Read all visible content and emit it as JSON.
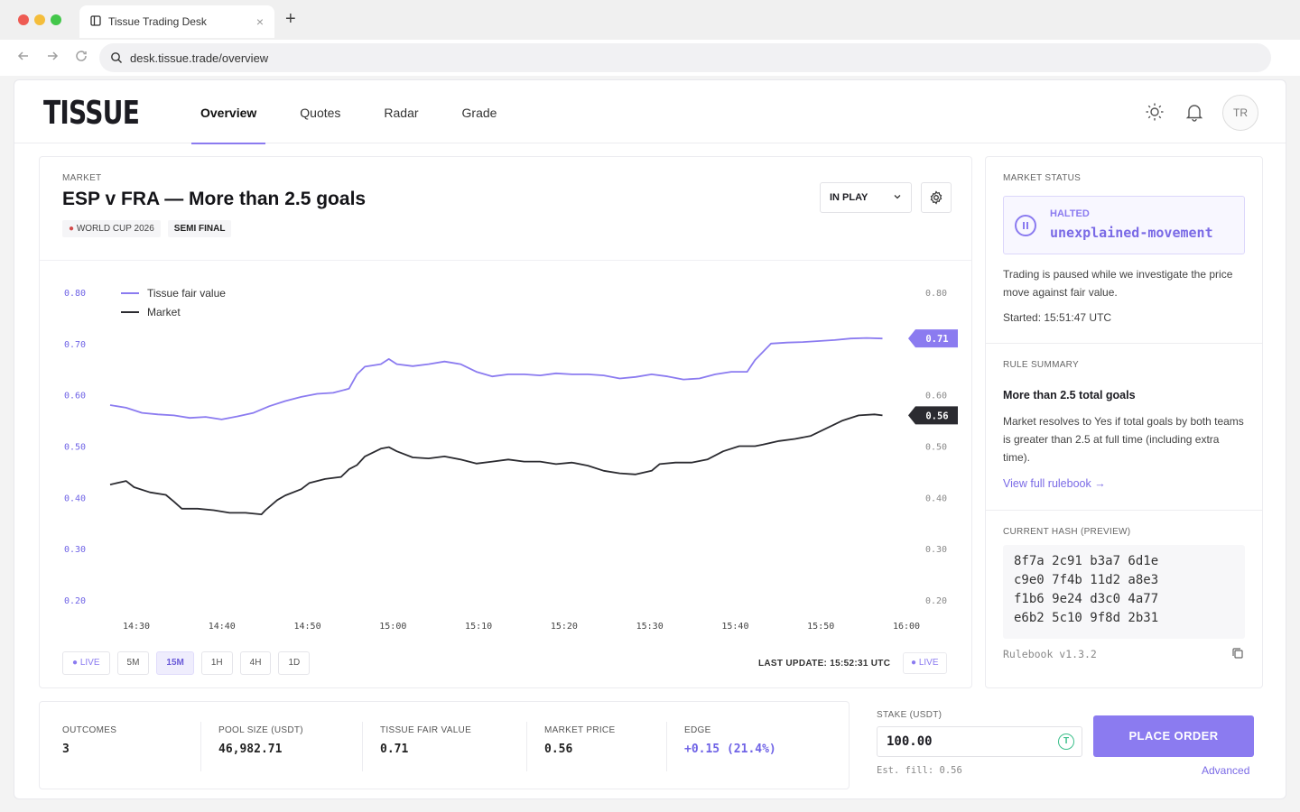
{
  "browser": {
    "tab_title": "Tissue Trading Desk",
    "tab_close": "×",
    "new_tab": "+",
    "url": "desk.tissue.trade/overview"
  },
  "header": {
    "logo": "TISSUE",
    "nav": [
      "Overview",
      "Quotes",
      "Radar",
      "Grade"
    ],
    "active_nav": "Overview",
    "avatar": "TR"
  },
  "market": {
    "section_label": "MARKET",
    "title": "ESP v FRA — More than 2.5 goals",
    "tag1": "WORLD CUP 2026",
    "tag2": "SEMI FINAL",
    "state_select": "IN PLAY",
    "timeframes": [
      "5M",
      "15M",
      "1H",
      "4H",
      "1D"
    ],
    "active_timeframe": "15M",
    "live_label": "LIVE",
    "last_update": "LAST UPDATE: 15:52:31 UTC"
  },
  "chart_data": {
    "type": "line",
    "xlabel": "",
    "ylabel": "",
    "ylim": [
      0.2,
      0.8
    ],
    "yticks": [
      "0.80",
      "0.70",
      "0.60",
      "0.50",
      "0.40",
      "0.30",
      "0.20"
    ],
    "xticks": [
      "14:30",
      "14:40",
      "14:50",
      "15:00",
      "15:10",
      "15:20",
      "15:30",
      "15:40",
      "15:50",
      "16:00"
    ],
    "grid": false,
    "legend": "top-left",
    "series": [
      {
        "name": "Tissue fair value",
        "color": "#8b7bf0",
        "end_label": "0.71",
        "points": [
          [
            0,
            0.58
          ],
          [
            2,
            0.575
          ],
          [
            4,
            0.565
          ],
          [
            6,
            0.562
          ],
          [
            8,
            0.56
          ],
          [
            10,
            0.555
          ],
          [
            12,
            0.557
          ],
          [
            14,
            0.552
          ],
          [
            16,
            0.558
          ],
          [
            18,
            0.565
          ],
          [
            20,
            0.578
          ],
          [
            22,
            0.588
          ],
          [
            24,
            0.596
          ],
          [
            26,
            0.602
          ],
          [
            28,
            0.604
          ],
          [
            30,
            0.612
          ],
          [
            31,
            0.64
          ],
          [
            32,
            0.655
          ],
          [
            34,
            0.66
          ],
          [
            35,
            0.67
          ],
          [
            36,
            0.66
          ],
          [
            38,
            0.656
          ],
          [
            40,
            0.66
          ],
          [
            42,
            0.665
          ],
          [
            44,
            0.66
          ],
          [
            46,
            0.645
          ],
          [
            48,
            0.636
          ],
          [
            50,
            0.64
          ],
          [
            52,
            0.64
          ],
          [
            54,
            0.638
          ],
          [
            56,
            0.642
          ],
          [
            58,
            0.64
          ],
          [
            60,
            0.64
          ],
          [
            62,
            0.638
          ],
          [
            64,
            0.632
          ],
          [
            66,
            0.635
          ],
          [
            68,
            0.64
          ],
          [
            70,
            0.636
          ],
          [
            72,
            0.63
          ],
          [
            74,
            0.632
          ],
          [
            76,
            0.64
          ],
          [
            78,
            0.645
          ],
          [
            80,
            0.645
          ],
          [
            81,
            0.668
          ],
          [
            83,
            0.7
          ],
          [
            85,
            0.702
          ],
          [
            87,
            0.703
          ],
          [
            89,
            0.705
          ],
          [
            91,
            0.707
          ],
          [
            93,
            0.71
          ],
          [
            95,
            0.711
          ],
          [
            97,
            0.71
          ]
        ]
      },
      {
        "name": "Market",
        "color": "#2b2b30",
        "end_label": "0.56",
        "points": [
          [
            0,
            0.425
          ],
          [
            2,
            0.432
          ],
          [
            3,
            0.42
          ],
          [
            5,
            0.41
          ],
          [
            7,
            0.405
          ],
          [
            8,
            0.392
          ],
          [
            9,
            0.378
          ],
          [
            11,
            0.378
          ],
          [
            13,
            0.375
          ],
          [
            15,
            0.37
          ],
          [
            17,
            0.37
          ],
          [
            19,
            0.367
          ],
          [
            19.5,
            0.375
          ],
          [
            21,
            0.395
          ],
          [
            22,
            0.404
          ],
          [
            24,
            0.416
          ],
          [
            25,
            0.428
          ],
          [
            27,
            0.436
          ],
          [
            29,
            0.44
          ],
          [
            30,
            0.455
          ],
          [
            31,
            0.463
          ],
          [
            32,
            0.48
          ],
          [
            34,
            0.495
          ],
          [
            35,
            0.498
          ],
          [
            36,
            0.49
          ],
          [
            38,
            0.478
          ],
          [
            40,
            0.476
          ],
          [
            42,
            0.48
          ],
          [
            44,
            0.474
          ],
          [
            46,
            0.466
          ],
          [
            48,
            0.47
          ],
          [
            50,
            0.474
          ],
          [
            52,
            0.47
          ],
          [
            54,
            0.47
          ],
          [
            56,
            0.465
          ],
          [
            58,
            0.468
          ],
          [
            60,
            0.462
          ],
          [
            62,
            0.452
          ],
          [
            64,
            0.447
          ],
          [
            66,
            0.445
          ],
          [
            68,
            0.452
          ],
          [
            69,
            0.465
          ],
          [
            71,
            0.468
          ],
          [
            73,
            0.468
          ],
          [
            75,
            0.474
          ],
          [
            77,
            0.49
          ],
          [
            79,
            0.5
          ],
          [
            81,
            0.5
          ],
          [
            82,
            0.503
          ],
          [
            84,
            0.51
          ],
          [
            86,
            0.514
          ],
          [
            88,
            0.52
          ],
          [
            90,
            0.535
          ],
          [
            92,
            0.55
          ],
          [
            94,
            0.56
          ],
          [
            96,
            0.562
          ],
          [
            97,
            0.56
          ]
        ]
      }
    ]
  },
  "status": {
    "section_label": "MARKET STATUS",
    "state": "HALTED",
    "reason": "unexplained-movement",
    "description": "Trading is paused while we investigate the price move against fair value.",
    "started": "Started: 15:51:47 UTC"
  },
  "rule": {
    "section_label": "RULE SUMMARY",
    "title": "More than 2.5 total goals",
    "text": "Market resolves to Yes if total goals by both teams is greater than 2.5 at full time (including extra time).",
    "link": "View full rulebook →"
  },
  "hash": {
    "section_label": "CURRENT HASH (PREVIEW)",
    "lines": [
      "8f7a 2c91 b3a7 6d1e",
      "c9e0 7f4b 11d2 a8e3",
      "f1b6 9e24 d3c0 4a77",
      "e6b2 5c10 9f8d 2b31"
    ],
    "version": "Rulebook v1.3.2"
  },
  "stats": [
    {
      "label": "OUTCOMES",
      "value": "3"
    },
    {
      "label": "POOL SIZE (USDT)",
      "value": "46,982.71"
    },
    {
      "label": "TISSUE FAIR VALUE",
      "value": "0.71"
    },
    {
      "label": "MARKET PRICE",
      "value": "0.56"
    },
    {
      "label": "EDGE",
      "value": "+0.15 (21.4%)"
    }
  ],
  "order": {
    "stake_label": "STAKE (USDT)",
    "stake_value": "100.00",
    "coin": "T",
    "est_fill": "Est. fill: 0.56",
    "button": "PLACE ORDER",
    "advanced": "Advanced"
  },
  "colors": {
    "accent": "#8b7bf0",
    "market_line": "#2b2b30",
    "edge": "#6f63e6"
  }
}
